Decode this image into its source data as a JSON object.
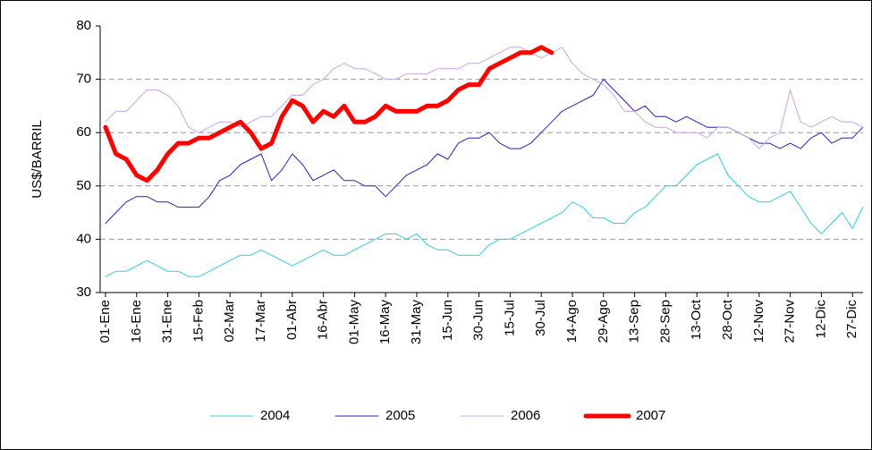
{
  "chart_data": {
    "type": "line",
    "y_label": "US$/BARRIL",
    "categories": [
      "01-Ene",
      null,
      null,
      "16-Ene",
      null,
      null,
      "31-Ene",
      null,
      null,
      "15-Feb",
      null,
      null,
      "02-Mar",
      null,
      null,
      "17-Mar",
      null,
      null,
      "01-Abr",
      null,
      null,
      "16-Abr",
      null,
      null,
      "01-May",
      null,
      null,
      "16-May",
      null,
      null,
      "31-May",
      null,
      null,
      "15-Jun",
      null,
      null,
      "30-Jun",
      null,
      null,
      "15-Jul",
      null,
      null,
      "30-Jul",
      null,
      null,
      "14-Ago",
      null,
      null,
      "29-Ago",
      null,
      null,
      "13-Sep",
      null,
      null,
      "28-Sep",
      null,
      null,
      "13-Oct",
      null,
      null,
      "28-Oct",
      null,
      null,
      "12-Nov",
      null,
      null,
      "27-Nov",
      null,
      null,
      "12-Dic",
      null,
      null,
      "27-Dic",
      null
    ],
    "series": [
      {
        "name": "2004",
        "color": "#33ccdd",
        "width": 1,
        "values": [
          33,
          34,
          34,
          35,
          36,
          35,
          34,
          34,
          33,
          33,
          34,
          35,
          36,
          37,
          37,
          38,
          37,
          36,
          35,
          36,
          37,
          38,
          37,
          37,
          38,
          39,
          40,
          41,
          41,
          40,
          41,
          39,
          38,
          38,
          37,
          37,
          37,
          39,
          40,
          40,
          41,
          42,
          43,
          44,
          45,
          47,
          46,
          44,
          44,
          43,
          43,
          45,
          46,
          48,
          50,
          50,
          52,
          54,
          55,
          56,
          52,
          50,
          48,
          47,
          47,
          48,
          49,
          46,
          43,
          41,
          43,
          45,
          42,
          46
        ]
      },
      {
        "name": "2005",
        "color": "#2222bb",
        "width": 1,
        "values": [
          43,
          45,
          47,
          48,
          48,
          47,
          47,
          46,
          46,
          46,
          48,
          51,
          52,
          54,
          55,
          56,
          51,
          53,
          56,
          54,
          51,
          52,
          53,
          51,
          51,
          50,
          50,
          48,
          50,
          52,
          53,
          54,
          56,
          55,
          58,
          59,
          59,
          60,
          58,
          57,
          57,
          58,
          60,
          62,
          64,
          65,
          66,
          67,
          70,
          68,
          66,
          64,
          65,
          63,
          63,
          62,
          63,
          62,
          61,
          61,
          61,
          60,
          59,
          58,
          58,
          57,
          58,
          57,
          59,
          60,
          58,
          59,
          59,
          61
        ]
      },
      {
        "name": "2006",
        "color": "#c9a6e6",
        "width": 1,
        "values": [
          62,
          64,
          64,
          66,
          68,
          68,
          67,
          65,
          61,
          60,
          61,
          62,
          62,
          61,
          62,
          63,
          63,
          65,
          67,
          67,
          69,
          70,
          72,
          73,
          72,
          72,
          71,
          70,
          70,
          71,
          71,
          71,
          72,
          72,
          72,
          73,
          73,
          74,
          75,
          76,
          76,
          75,
          74,
          75,
          76,
          73,
          71,
          70,
          69,
          67,
          64,
          64,
          62,
          61,
          61,
          60,
          60,
          60,
          59,
          61,
          61,
          60,
          59,
          57,
          59,
          60,
          68,
          62,
          61,
          62,
          63,
          62,
          62,
          61
        ]
      },
      {
        "name": "2007",
        "color": "#ff0000",
        "width": 5,
        "values": [
          61,
          56,
          55,
          52,
          51,
          53,
          56,
          58,
          58,
          59,
          59,
          60,
          61,
          62,
          60,
          57,
          58,
          63,
          66,
          65,
          62,
          64,
          63,
          65,
          62,
          62,
          63,
          65,
          64,
          64,
          64,
          65,
          65,
          66,
          68,
          69,
          69,
          72,
          73,
          74,
          75,
          75,
          76,
          75,
          null,
          null,
          null,
          null,
          null,
          null,
          null,
          null,
          null,
          null,
          null,
          null,
          null,
          null,
          null,
          null,
          null,
          null,
          null,
          null,
          null,
          null,
          null,
          null,
          null,
          null,
          null,
          null,
          null,
          null
        ]
      }
    ],
    "ylim": [
      30,
      80
    ],
    "yticks": [
      30,
      40,
      50,
      60,
      70,
      80
    ],
    "grid": true,
    "legend": "bottom"
  }
}
